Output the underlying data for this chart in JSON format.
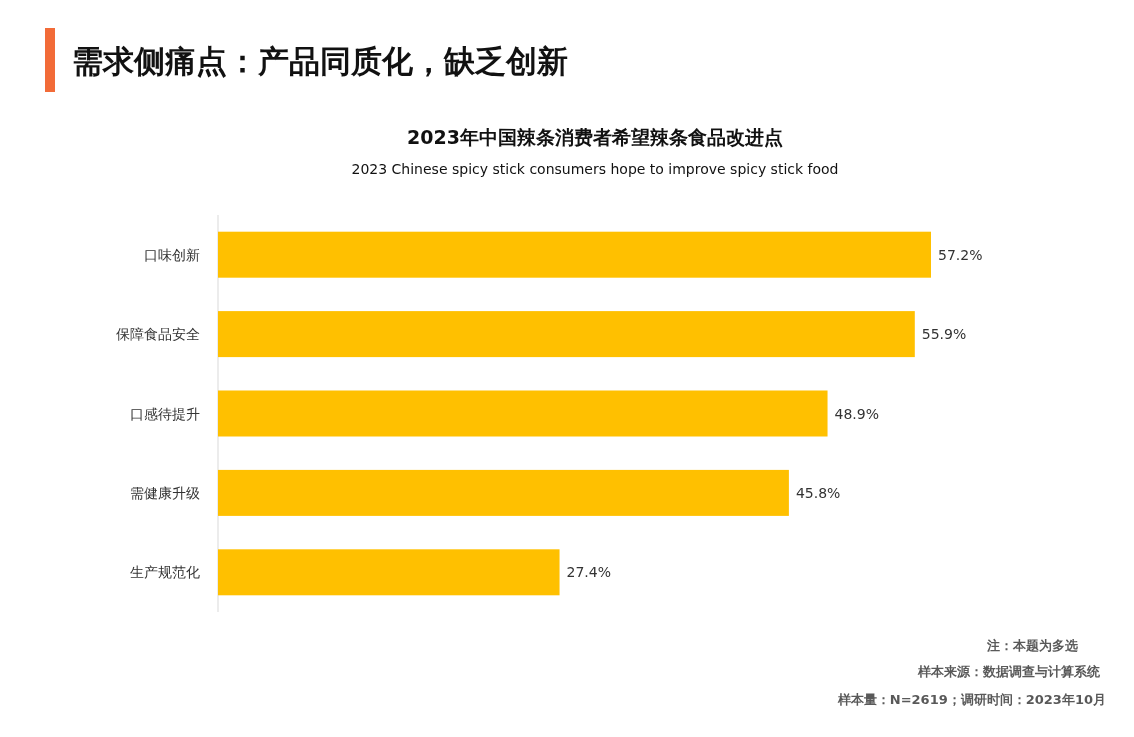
{
  "chart_data": {
    "type": "bar",
    "orientation": "horizontal",
    "title": "2023年中国辣条消费者希望辣条食品改进点",
    "subtitle": "2023 Chinese spicy stick consumers hope to improve spicy stick food",
    "annotations": [
      "需求侧痛点：产品同质化，缺乏创新",
      "注：本题为多选",
      "样本来源：数据调查与计算系统",
      "样本量：N=2619；调研时间：2023年10月"
    ],
    "categories": [
      "口味创新",
      "保障食品安全",
      "口感待提升",
      "需健康升级",
      "生产规范化"
    ],
    "values": [
      57.2,
      55.9,
      48.9,
      45.8,
      27.4
    ],
    "value_labels": [
      "57.2%",
      "55.9%",
      "48.9%",
      "45.8%",
      "27.4%"
    ],
    "color": "#ffc000"
  }
}
